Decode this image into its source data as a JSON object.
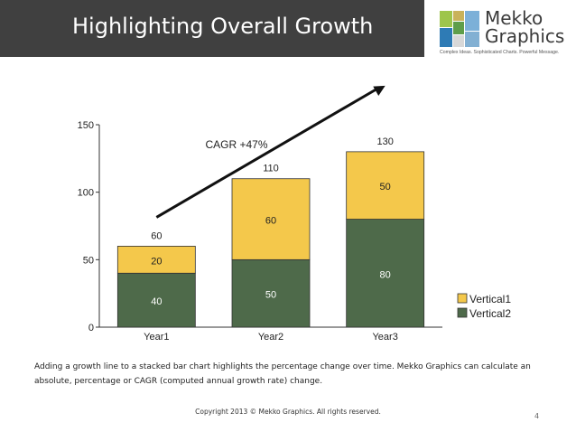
{
  "header": {
    "title": "Highlighting Overall Growth"
  },
  "logo": {
    "word1": "Mekko",
    "word2": "Graphics",
    "tagline": "Complex Ideas. Sophisticated Charts. Powerful Message.",
    "colors": [
      "#9ec54b",
      "#5f9e4a",
      "#2e7bb5",
      "#7cb0d8",
      "#d8d8d8",
      "#c9b25a"
    ]
  },
  "chart_data": {
    "type": "bar",
    "stacked": true,
    "categories": [
      "Year1",
      "Year2",
      "Year3"
    ],
    "series": [
      {
        "name": "Vertical2",
        "values": [
          40,
          50,
          80
        ],
        "color": "#4e6a4a"
      },
      {
        "name": "Vertical1",
        "values": [
          20,
          60,
          50
        ],
        "color": "#f4c84b"
      }
    ],
    "totals": [
      60,
      110,
      130
    ],
    "ylim": [
      0,
      150
    ],
    "yticks": [
      0,
      50,
      100,
      150
    ],
    "legend_position": "right",
    "grid": false,
    "annotation": {
      "text": "CAGR  +47%",
      "type": "growth-arrow"
    }
  },
  "caption": "Adding a growth line to a stacked bar chart highlights the percentage change over time.  Mekko Graphics can calculate an absolute, percentage or CAGR (computed annual growth rate) change.",
  "footer": {
    "copyright": "Copyright 2013 © Mekko Graphics. All rights reserved.",
    "page": "4"
  }
}
